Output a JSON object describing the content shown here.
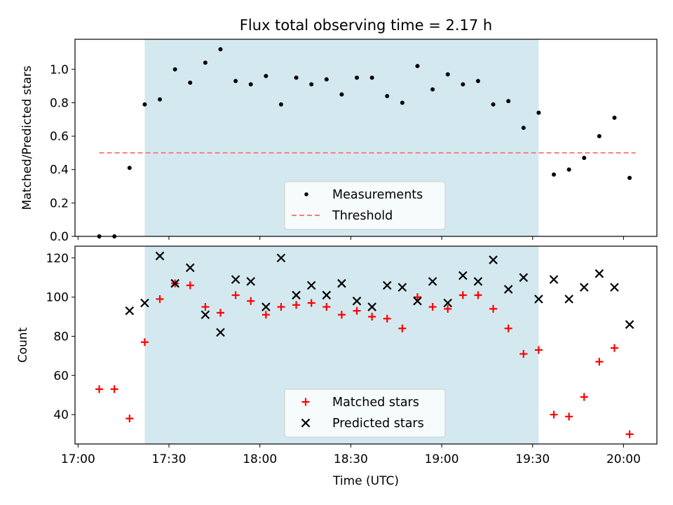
{
  "chart_data": [
    {
      "type": "scatter",
      "title": "Flux total observing time = 2.17 h",
      "ylabel": "Matched/Predicted stars",
      "xlabel": "",
      "xlim": [
        "16:59",
        "20:11"
      ],
      "ylim": [
        0,
        1.18
      ],
      "yticks": [
        "0.0",
        "0.2",
        "0.4",
        "0.6",
        "0.8",
        "1.0"
      ],
      "highlight_span": {
        "start": "17:22",
        "end": "19:32",
        "color": "#d3e9ef"
      },
      "legend_position": "bottom-center",
      "series": [
        {
          "name": "Measurements",
          "marker": "dot",
          "color": "#000000",
          "x": [
            "17:07",
            "17:12",
            "17:17",
            "17:22",
            "17:27",
            "17:32",
            "17:37",
            "17:42",
            "17:47",
            "17:52",
            "17:57",
            "18:02",
            "18:07",
            "18:12",
            "18:17",
            "18:22",
            "18:27",
            "18:32",
            "18:37",
            "18:42",
            "18:47",
            "18:52",
            "18:57",
            "19:02",
            "19:07",
            "19:12",
            "19:17",
            "19:22",
            "19:27",
            "19:32",
            "19:37",
            "19:42",
            "19:47",
            "19:52",
            "19:57",
            "20:02"
          ],
          "y": [
            0.0,
            0.0,
            0.41,
            0.79,
            0.82,
            1.0,
            0.92,
            1.04,
            1.12,
            0.93,
            0.91,
            0.96,
            0.79,
            0.95,
            0.91,
            0.94,
            0.85,
            0.95,
            0.95,
            0.84,
            0.8,
            1.02,
            0.88,
            0.97,
            0.91,
            0.93,
            0.79,
            0.81,
            0.65,
            0.74,
            0.37,
            0.4,
            0.47,
            0.6,
            0.71,
            0.35
          ]
        },
        {
          "name": "Threshold",
          "marker": "dashed-line",
          "color": "#f08080",
          "x": [
            "17:07",
            "20:04"
          ],
          "y": [
            0.5,
            0.5
          ]
        }
      ]
    },
    {
      "type": "scatter",
      "title": "",
      "ylabel": "Count",
      "xlabel": "Time (UTC)",
      "xlim": [
        "16:59",
        "20:11"
      ],
      "ylim": [
        25,
        126
      ],
      "yticks": [
        "40",
        "60",
        "80",
        "100",
        "120"
      ],
      "xticks": [
        "17:00",
        "17:30",
        "18:00",
        "18:30",
        "19:00",
        "19:30",
        "20:00"
      ],
      "highlight_span": {
        "start": "17:22",
        "end": "19:32",
        "color": "#d3e9ef"
      },
      "legend_position": "bottom-center",
      "series": [
        {
          "name": "Matched stars",
          "marker": "plus",
          "color": "#ff0000",
          "x": [
            "17:07",
            "17:12",
            "17:17",
            "17:22",
            "17:27",
            "17:32",
            "17:37",
            "17:42",
            "17:47",
            "17:52",
            "17:57",
            "18:02",
            "18:07",
            "18:12",
            "18:17",
            "18:22",
            "18:27",
            "18:32",
            "18:37",
            "18:42",
            "18:47",
            "18:52",
            "18:57",
            "19:02",
            "19:07",
            "19:12",
            "19:17",
            "19:22",
            "19:27",
            "19:32",
            "19:37",
            "19:42",
            "19:47",
            "19:52",
            "19:57",
            "20:02"
          ],
          "y": [
            53,
            53,
            38,
            77,
            99,
            107,
            106,
            95,
            92,
            101,
            98,
            91,
            95,
            96,
            97,
            95,
            91,
            93,
            90,
            89,
            84,
            100,
            95,
            94,
            101,
            101,
            94,
            84,
            71,
            73,
            40,
            39,
            49,
            67,
            74,
            30
          ]
        },
        {
          "name": "Predicted stars",
          "marker": "x",
          "color": "#000000",
          "x": [
            "17:17",
            "17:22",
            "17:27",
            "17:32",
            "17:37",
            "17:42",
            "17:47",
            "17:52",
            "17:57",
            "18:02",
            "18:07",
            "18:12",
            "18:17",
            "18:22",
            "18:27",
            "18:32",
            "18:37",
            "18:42",
            "18:47",
            "18:52",
            "18:57",
            "19:02",
            "19:07",
            "19:12",
            "19:17",
            "19:22",
            "19:27",
            "19:32",
            "19:37",
            "19:42",
            "19:47",
            "19:52",
            "19:57",
            "20:02"
          ],
          "y": [
            93,
            97,
            121,
            107,
            115,
            91,
            82,
            109,
            108,
            95,
            120,
            101,
            106,
            101,
            107,
            98,
            95,
            106,
            105,
            98,
            108,
            97,
            111,
            108,
            119,
            104,
            110,
            99,
            109,
            99,
            105,
            112,
            105,
            86
          ]
        }
      ]
    }
  ]
}
